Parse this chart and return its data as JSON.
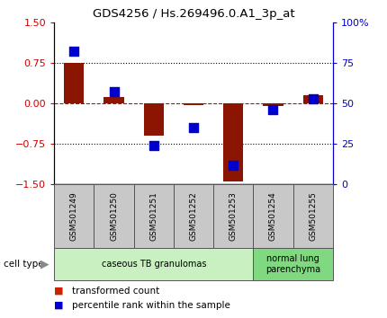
{
  "title": "GDS4256 / Hs.269496.0.A1_3p_at",
  "samples": [
    "GSM501249",
    "GSM501250",
    "GSM501251",
    "GSM501252",
    "GSM501253",
    "GSM501254",
    "GSM501255"
  ],
  "transformed_count": [
    0.75,
    0.12,
    -0.6,
    -0.03,
    -1.45,
    -0.05,
    0.15
  ],
  "percentile_rank": [
    82,
    57,
    24,
    35,
    12,
    46,
    53
  ],
  "ylim_left": [
    -1.5,
    1.5
  ],
  "ylim_right": [
    0,
    100
  ],
  "yticks_left": [
    -1.5,
    -0.75,
    0,
    0.75,
    1.5
  ],
  "yticks_right": [
    0,
    25,
    50,
    75,
    100
  ],
  "bar_color": "#8B1500",
  "dot_color": "#0000CD",
  "zero_line_color": "#CC0000",
  "dot_hline_color": "#CC0000",
  "cell_type_groups": [
    {
      "label": "caseous TB granulomas",
      "start": 0,
      "end": 4,
      "color": "#C8F0C0"
    },
    {
      "label": "normal lung\nparenchyma",
      "start": 5,
      "end": 6,
      "color": "#80D880"
    }
  ],
  "bar_width": 0.5,
  "dot_size": 55,
  "legend_items": [
    {
      "color": "#CC2200",
      "label": "transformed count"
    },
    {
      "color": "#0000CD",
      "label": "percentile rank within the sample"
    }
  ],
  "label_bg": "#C8C8C8",
  "label_border": "#888888"
}
